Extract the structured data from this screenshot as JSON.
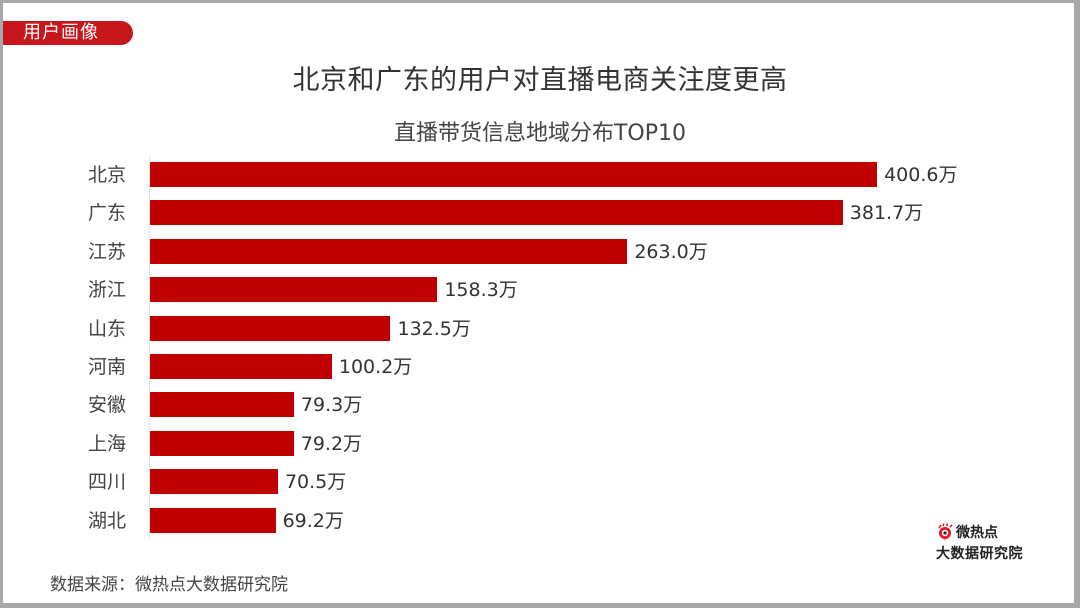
{
  "header": {
    "tag": "用户画像",
    "title": "北京和广东的用户对直播电商关注度更高",
    "subtitle": "直播带货信息地域分布TOP10"
  },
  "footer": {
    "source": "数据来源：微热点大数据研究院",
    "logo_line1": "微热点",
    "logo_line2": "大数据研究院"
  },
  "colors": {
    "bar": "#c00000",
    "tag": "#c8161d"
  },
  "chart_data": {
    "type": "bar",
    "orientation": "horizontal",
    "title": "直播带货信息地域分布TOP10",
    "xlabel": "",
    "ylabel": "",
    "unit": "万",
    "categories": [
      "北京",
      "广东",
      "江苏",
      "浙江",
      "山东",
      "河南",
      "安徽",
      "上海",
      "四川",
      "湖北"
    ],
    "values": [
      400.6,
      381.7,
      263.0,
      158.3,
      132.5,
      100.2,
      79.3,
      79.2,
      70.5,
      69.2
    ],
    "labels": [
      "400.6万",
      "381.7万",
      "263.0万",
      "158.3万",
      "132.5万",
      "100.2万",
      "79.3万",
      "79.2万",
      "70.5万",
      "69.2万"
    ],
    "grid": false,
    "legend": null
  }
}
